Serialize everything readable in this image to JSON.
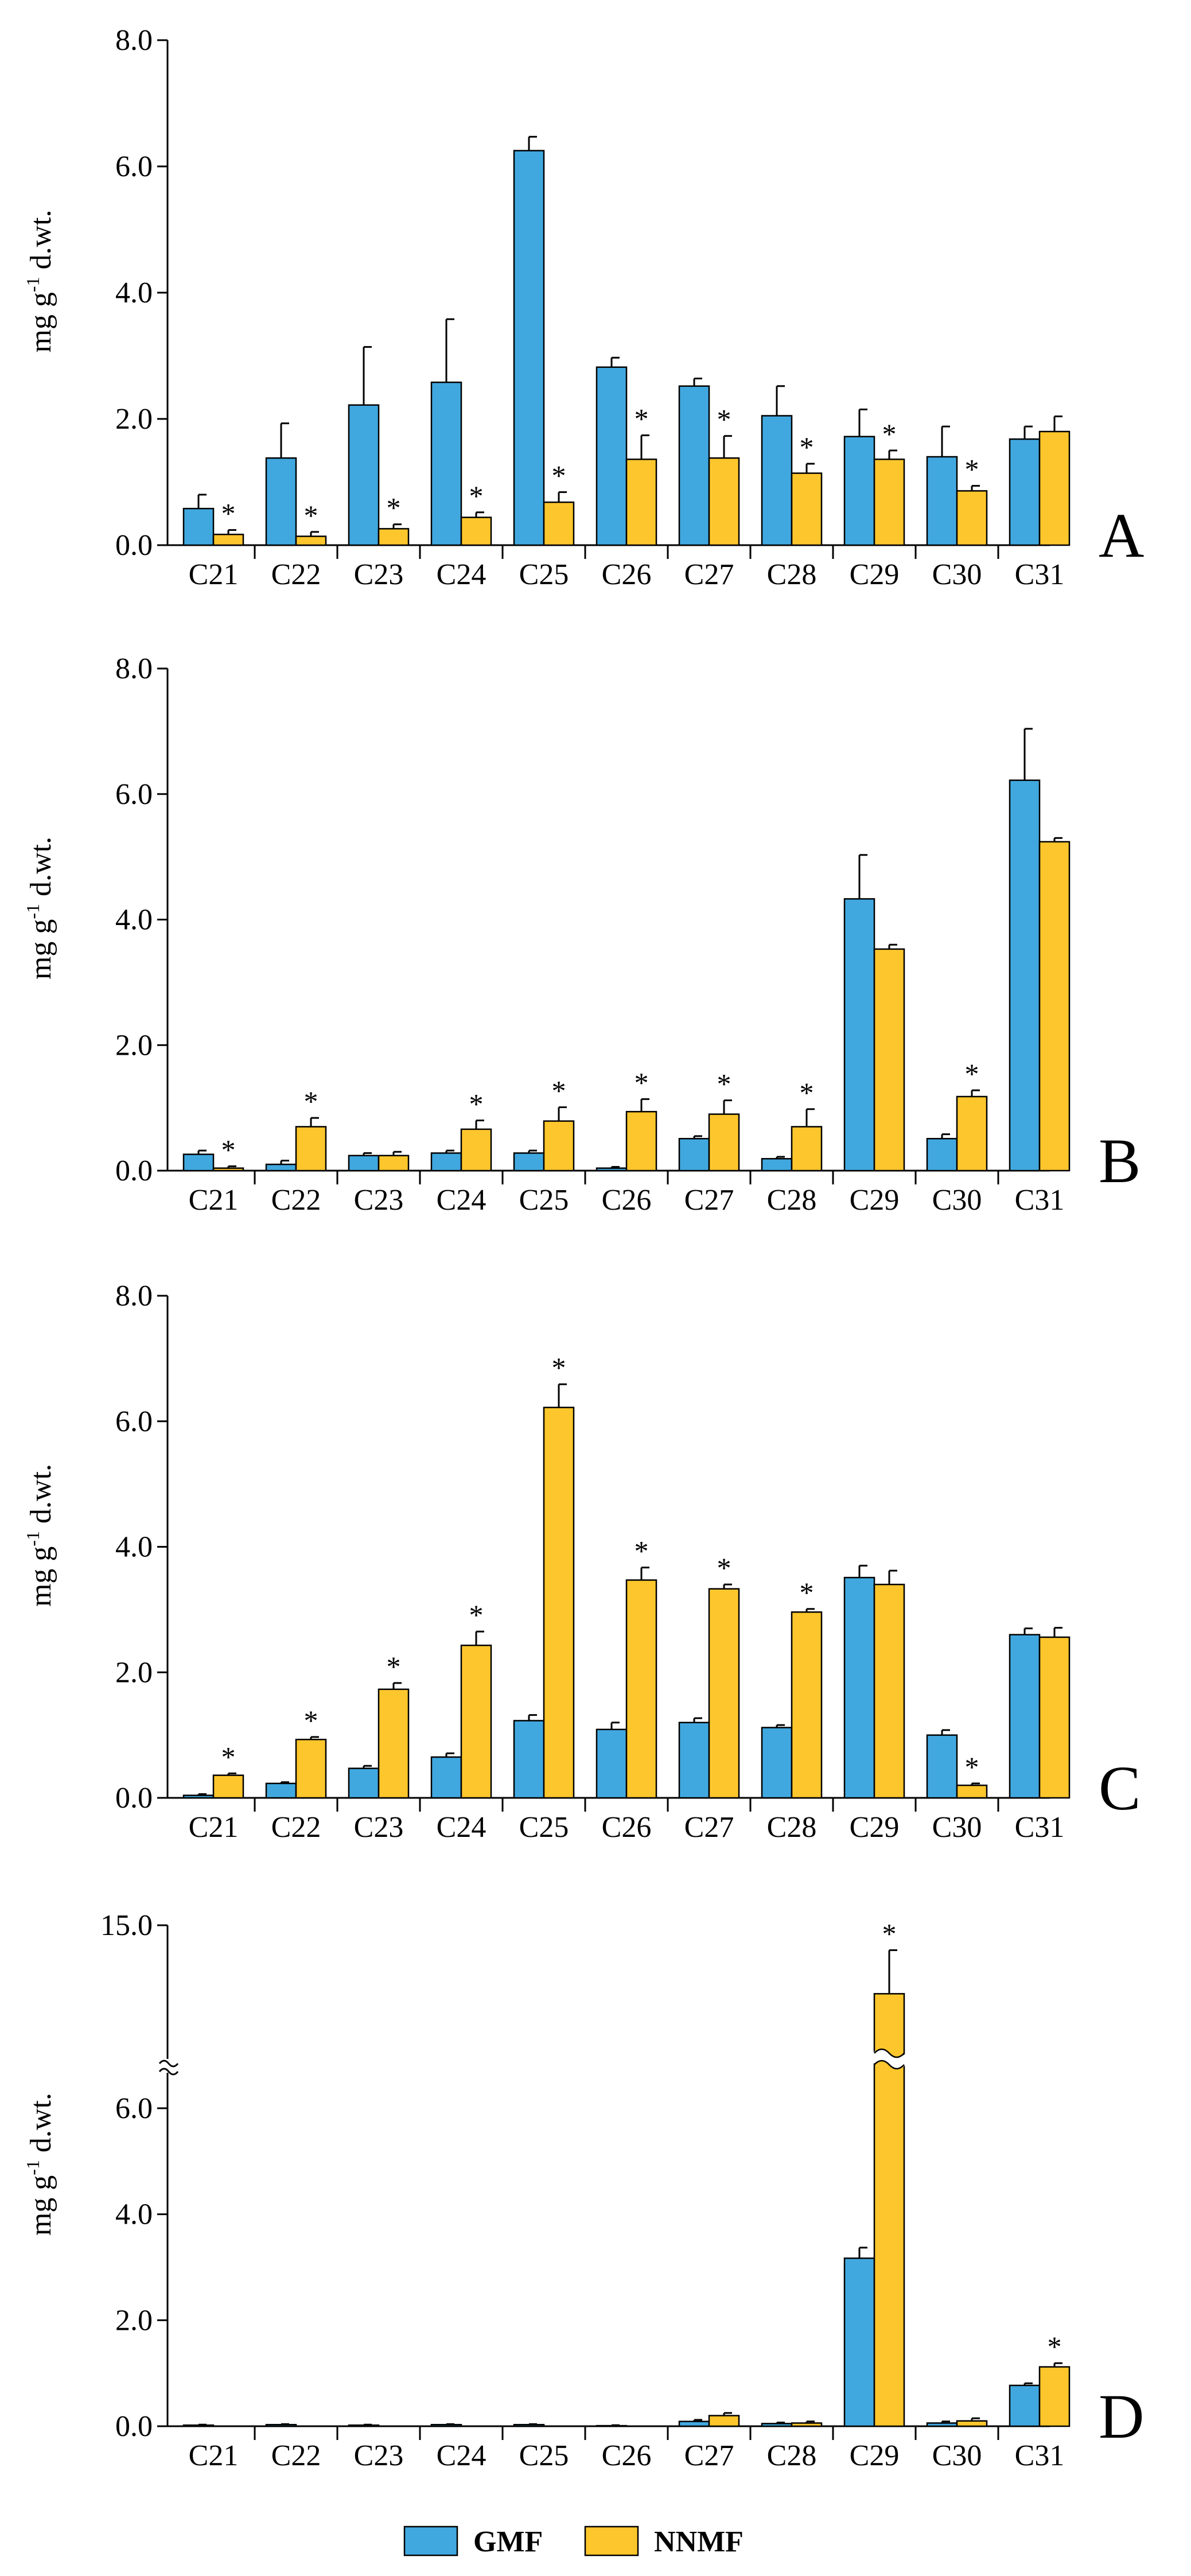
{
  "colors": {
    "gmf": "#41a8df",
    "nnmf": "#fdc62c",
    "axis": "#000000"
  },
  "legend": [
    {
      "key": "gmf",
      "label": "GMF"
    },
    {
      "key": "nnmf",
      "label": "NNMF"
    }
  ],
  "significance_marker": "*",
  "chart_data": [
    {
      "type": "bar",
      "panel_label": "A",
      "ylabel": "mg g-1 d.wt.",
      "ylabel_parts": {
        "unit": "mg g",
        "exponent": "-1",
        "suffix": "d.wt."
      },
      "ylim": [
        0,
        8
      ],
      "yticks": [
        "0.0",
        "2.0",
        "4.0",
        "6.0",
        "8.0"
      ],
      "categories": [
        "C21",
        "C22",
        "C23",
        "C24",
        "C25",
        "C26",
        "C27",
        "C28",
        "C29",
        "C30",
        "C31"
      ],
      "series": [
        {
          "name": "GMF",
          "values": [
            0.58,
            1.38,
            2.22,
            2.58,
            6.25,
            2.82,
            2.52,
            2.05,
            1.72,
            1.4,
            1.68
          ],
          "errors": [
            0.22,
            0.55,
            0.92,
            1.0,
            0.22,
            0.15,
            0.12,
            0.47,
            0.43,
            0.48,
            0.2
          ]
        },
        {
          "name": "NNMF",
          "values": [
            0.17,
            0.14,
            0.26,
            0.44,
            0.68,
            1.36,
            1.38,
            1.14,
            1.36,
            0.86,
            1.8
          ],
          "errors": [
            0.07,
            0.07,
            0.07,
            0.08,
            0.16,
            0.38,
            0.35,
            0.15,
            0.14,
            0.08,
            0.24
          ]
        }
      ],
      "significant": [
        true,
        true,
        true,
        true,
        true,
        true,
        true,
        true,
        true,
        true,
        false
      ]
    },
    {
      "type": "bar",
      "panel_label": "B",
      "ylabel": "mg g-1 d.wt.",
      "ylabel_parts": {
        "unit": "mg g",
        "exponent": "-1",
        "suffix": "d.wt."
      },
      "ylim": [
        0,
        8
      ],
      "yticks": [
        "0.0",
        "2.0",
        "4.0",
        "6.0",
        "8.0"
      ],
      "categories": [
        "C21",
        "C22",
        "C23",
        "C24",
        "C25",
        "C26",
        "C27",
        "C28",
        "C29",
        "C30",
        "C31"
      ],
      "series": [
        {
          "name": "GMF",
          "values": [
            0.26,
            0.1,
            0.24,
            0.28,
            0.28,
            0.04,
            0.51,
            0.19,
            4.33,
            0.51,
            6.22
          ],
          "errors": [
            0.06,
            0.06,
            0.04,
            0.04,
            0.04,
            0.02,
            0.04,
            0.03,
            0.7,
            0.07,
            0.82
          ]
        },
        {
          "name": "NNMF",
          "values": [
            0.04,
            0.7,
            0.24,
            0.66,
            0.79,
            0.94,
            0.9,
            0.7,
            3.53,
            1.18,
            5.24
          ],
          "errors": [
            0.03,
            0.14,
            0.06,
            0.14,
            0.22,
            0.2,
            0.22,
            0.28,
            0.07,
            0.1,
            0.06
          ]
        }
      ],
      "significant": [
        true,
        true,
        false,
        true,
        true,
        true,
        true,
        true,
        false,
        true,
        false
      ]
    },
    {
      "type": "bar",
      "panel_label": "C",
      "ylabel": "mg g-1 d.wt.",
      "ylabel_parts": {
        "unit": "mg g",
        "exponent": "-1",
        "suffix": "d.wt."
      },
      "ylim": [
        0,
        8
      ],
      "yticks": [
        "0.0",
        "2.0",
        "4.0",
        "6.0",
        "8.0"
      ],
      "categories": [
        "C21",
        "C22",
        "C23",
        "C24",
        "C25",
        "C26",
        "C27",
        "C28",
        "C29",
        "C30",
        "C31"
      ],
      "series": [
        {
          "name": "GMF",
          "values": [
            0.04,
            0.23,
            0.47,
            0.65,
            1.23,
            1.09,
            1.2,
            1.12,
            3.51,
            1.0,
            2.6
          ],
          "errors": [
            0.02,
            0.02,
            0.04,
            0.06,
            0.09,
            0.11,
            0.07,
            0.04,
            0.19,
            0.08,
            0.1
          ]
        },
        {
          "name": "NNMF",
          "values": [
            0.36,
            0.93,
            1.73,
            2.43,
            6.22,
            3.47,
            3.33,
            2.96,
            3.4,
            0.2,
            2.56
          ],
          "errors": [
            0.03,
            0.04,
            0.1,
            0.22,
            0.37,
            0.2,
            0.07,
            0.05,
            0.22,
            0.03,
            0.15
          ]
        }
      ],
      "significant": [
        true,
        true,
        true,
        true,
        true,
        true,
        true,
        true,
        false,
        true,
        false
      ]
    },
    {
      "type": "bar",
      "panel_label": "D",
      "ylabel": "mg g-1 d.wt.",
      "ylabel_parts": {
        "unit": "mg g",
        "exponent": "-1",
        "suffix": "d.wt."
      },
      "ylim": [
        0,
        15
      ],
      "axis_break": {
        "from": 6.8,
        "to": 14.0
      },
      "yticks": [
        "0.0",
        "2.0",
        "4.0",
        "6.0",
        "15.0"
      ],
      "categories": [
        "C21",
        "C22",
        "C23",
        "C24",
        "C25",
        "C26",
        "C27",
        "C28",
        "C29",
        "C30",
        "C31"
      ],
      "series": [
        {
          "name": "GMF",
          "values": [
            0.02,
            0.03,
            0.02,
            0.03,
            0.03,
            0.01,
            0.09,
            0.05,
            3.17,
            0.06,
            0.77
          ],
          "errors": [
            0.01,
            0.01,
            0.01,
            0.01,
            0.01,
            0.01,
            0.03,
            0.02,
            0.2,
            0.03,
            0.04
          ]
        },
        {
          "name": "NNMF",
          "values": [
            0.0,
            0.0,
            0.0,
            0.0,
            0.0,
            0.0,
            0.2,
            0.06,
            14.45,
            0.1,
            1.12
          ],
          "errors": [
            0.0,
            0.0,
            0.0,
            0.0,
            0.0,
            0.0,
            0.05,
            0.03,
            0.35,
            0.05,
            0.07
          ]
        }
      ],
      "significant": [
        false,
        false,
        false,
        false,
        false,
        false,
        false,
        false,
        true,
        false,
        true
      ]
    }
  ]
}
